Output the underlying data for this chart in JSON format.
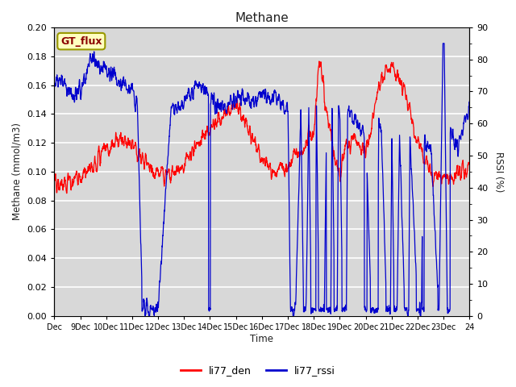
{
  "title": "Methane",
  "xlabel": "Time",
  "ylabel_left": "Methane (mmol/m3)",
  "ylabel_right": "RSSI (%)",
  "legend_label1": "li77_den",
  "legend_label2": "li77_rssi",
  "gt_flux_label": "GT_flux",
  "ylim_left": [
    0.0,
    0.2
  ],
  "ylim_right": [
    0,
    90
  ],
  "background_color": "#e0e0e0",
  "plot_bg_color": "#d8d8d8",
  "line_color_red": "#ff0000",
  "line_color_blue": "#0000cd",
  "xtick_labels": [
    "Dec",
    "9Dec",
    "10Dec",
    "11Dec",
    "12Dec",
    "13Dec",
    "14Dec",
    "15Dec",
    "16Dec",
    "17Dec",
    "18Dec",
    "19Dec",
    "20Dec",
    "21Dec",
    "22Dec",
    "23Dec",
    "24"
  ],
  "yticks_left": [
    0.0,
    0.02,
    0.04,
    0.06,
    0.08,
    0.1,
    0.12,
    0.14,
    0.16,
    0.18,
    0.2
  ],
  "yticks_right": [
    0,
    10,
    20,
    30,
    40,
    50,
    60,
    70,
    80,
    90
  ],
  "n_points": 2000,
  "seed": 7
}
